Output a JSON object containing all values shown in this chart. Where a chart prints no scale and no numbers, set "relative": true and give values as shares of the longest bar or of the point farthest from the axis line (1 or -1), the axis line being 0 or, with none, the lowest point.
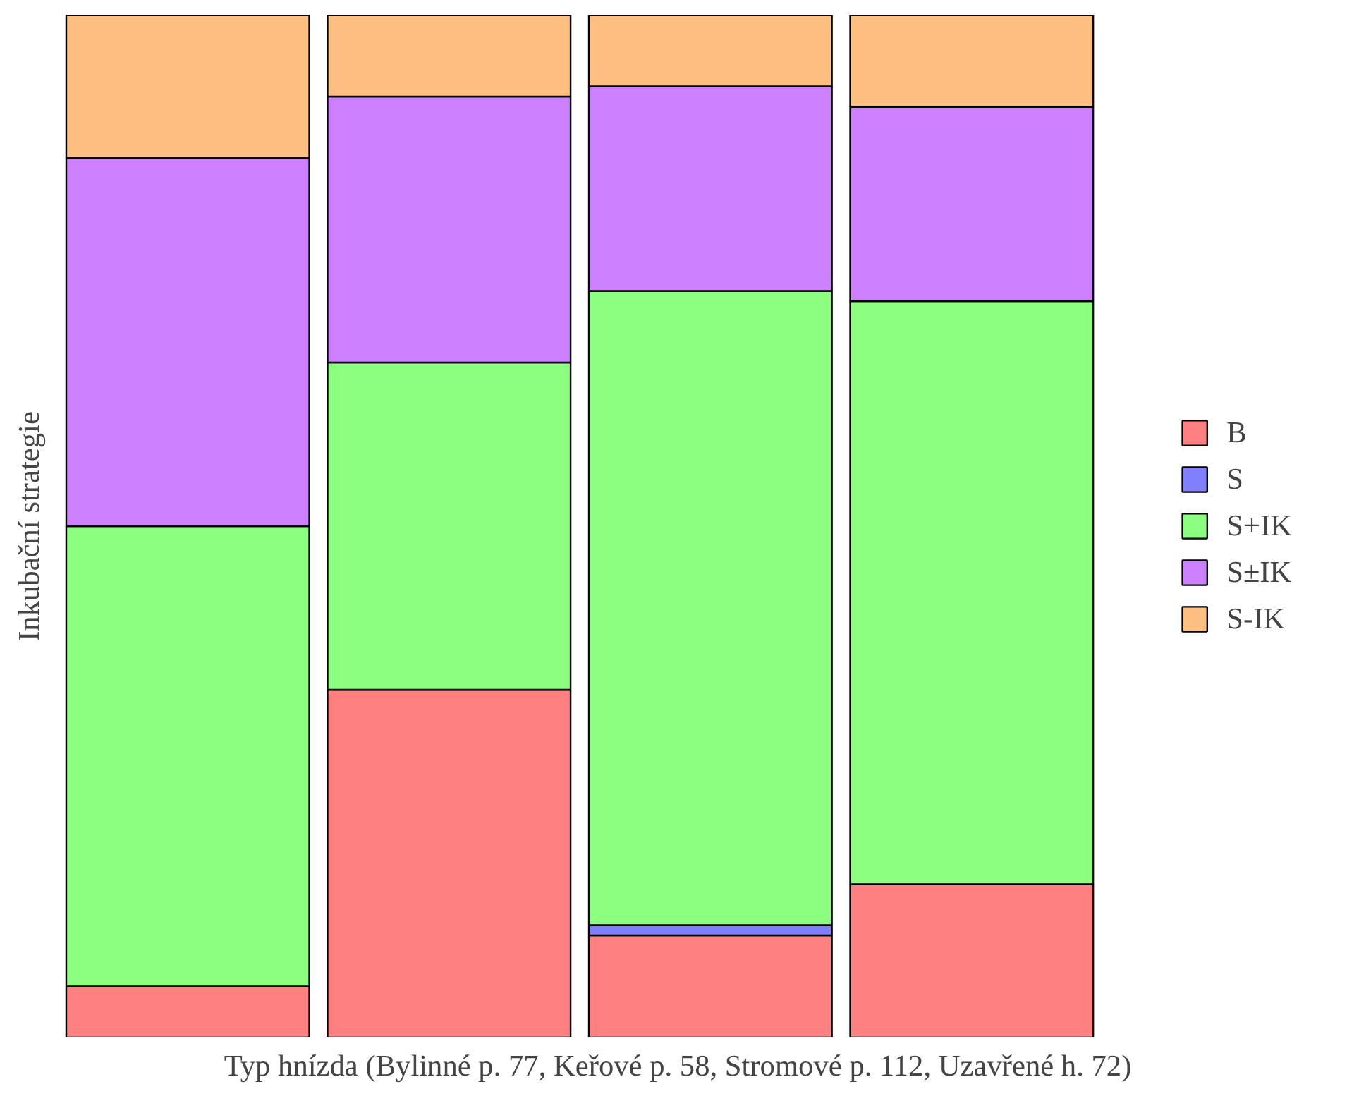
{
  "chart_data": {
    "type": "bar",
    "stacked": true,
    "relative": true,
    "xlabel": "Typ hnízda (Bylinné p. 77, Keřové p. 58, Stromové p. 112, Uzavřené h. 72)",
    "ylabel": "Inkubační strategie",
    "categories": [
      null,
      null,
      null,
      null
    ],
    "legend": "right",
    "grid": false,
    "series": [
      {
        "name": "B",
        "color": "#ff8080",
        "values": [
          0.05,
          0.34,
          0.1,
          0.15
        ]
      },
      {
        "name": "S",
        "color": "#8080ff",
        "values": [
          0,
          0,
          0.01,
          0
        ]
      },
      {
        "name": "S+IK",
        "color": "#8cff80",
        "values": [
          0.45,
          0.32,
          0.62,
          0.57
        ]
      },
      {
        "name": "S±IK",
        "color": "#cc80ff",
        "values": [
          0.36,
          0.26,
          0.2,
          0.19
        ]
      },
      {
        "name": "S-IK",
        "color": "#ffbf80",
        "values": [
          0.14,
          0.08,
          0.07,
          0.09
        ]
      }
    ]
  }
}
